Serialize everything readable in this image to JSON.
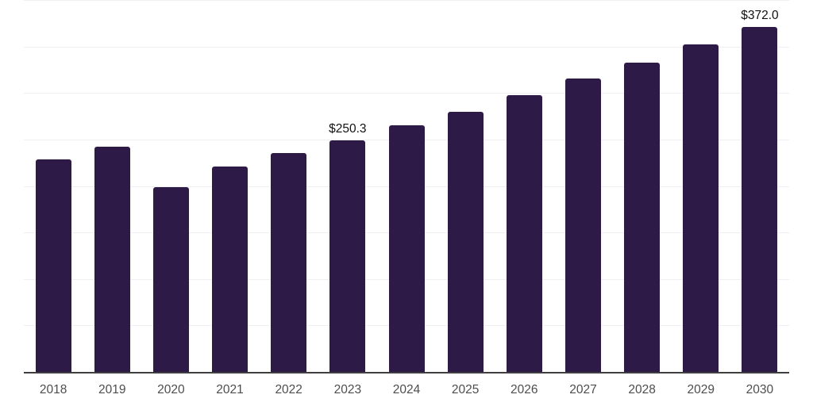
{
  "chart_data": {
    "type": "bar",
    "title": "",
    "xlabel": "",
    "ylabel": "",
    "categories": [
      "2018",
      "2019",
      "2020",
      "2021",
      "2022",
      "2023",
      "2024",
      "2025",
      "2026",
      "2027",
      "2028",
      "2029",
      "2030"
    ],
    "values": [
      229.3,
      242.7,
      199.2,
      221.6,
      236.4,
      250.3,
      265.7,
      280.7,
      298.3,
      316.2,
      333.9,
      352.9,
      372.0
    ],
    "data_labels": [
      "",
      "",
      "",
      "",
      "",
      "$250.3",
      "",
      "",
      "",
      "",
      "",
      "",
      "$372.0"
    ],
    "ylim": [
      0,
      400
    ],
    "gridline_step": 50,
    "grid": "horizontal",
    "legend": "none",
    "y_axis_tick_labels": "none",
    "colors": {
      "bar": "#2E1A47",
      "gridline": "#EFEFF1",
      "axis_line": "#3F3F3F",
      "x_tick_label": "#4D4D4D",
      "data_label": "#111111",
      "background": "#FFFFFF"
    }
  }
}
